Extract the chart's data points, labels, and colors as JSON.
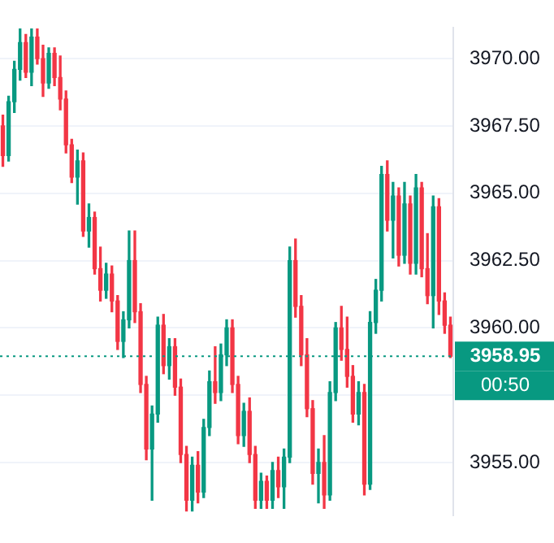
{
  "chart_data": {
    "type": "candlestick",
    "categories": [
      null,
      null,
      null,
      null,
      null,
      null,
      null,
      null,
      null,
      null,
      null,
      null,
      null,
      null,
      null,
      null,
      null,
      null,
      null,
      null,
      null,
      null,
      null,
      null,
      null,
      null,
      null,
      null,
      null,
      null,
      null,
      null,
      null,
      null,
      null,
      null,
      null,
      null,
      null,
      null,
      null,
      null,
      null,
      null,
      null,
      null,
      null,
      null,
      null,
      null,
      null,
      null,
      null,
      null,
      null,
      null,
      null,
      null,
      null,
      null,
      null,
      null,
      null,
      null,
      null,
      null,
      null,
      null,
      null,
      null,
      null,
      null,
      null,
      null,
      null,
      null,
      null,
      null,
      null
    ],
    "ohlc": [
      [
        3967.5,
        3967.9,
        3966.0,
        3966.4
      ],
      [
        3966.4,
        3968.6,
        3966.2,
        3968.4
      ],
      [
        3968.4,
        3969.9,
        3968.0,
        3969.6
      ],
      [
        3969.6,
        3971.1,
        3969.2,
        3970.6
      ],
      [
        3970.6,
        3970.9,
        3969.3,
        3969.5
      ],
      [
        3969.5,
        3971.1,
        3969.0,
        3970.8
      ],
      [
        3970.8,
        3971.1,
        3969.8,
        3970.0
      ],
      [
        3970.0,
        3970.5,
        3968.6,
        3969.1
      ],
      [
        3969.1,
        3970.4,
        3968.9,
        3970.2
      ],
      [
        3970.2,
        3970.4,
        3969.0,
        3969.3
      ],
      [
        3969.3,
        3970.1,
        3968.1,
        3968.5
      ],
      [
        3968.5,
        3968.8,
        3966.5,
        3966.8
      ],
      [
        3966.8,
        3967.0,
        3965.4,
        3965.6
      ],
      [
        3965.6,
        3966.6,
        3964.6,
        3966.2
      ],
      [
        3966.2,
        3966.5,
        3963.4,
        3963.6
      ],
      [
        3963.6,
        3964.6,
        3963.0,
        3964.1
      ],
      [
        3964.1,
        3964.3,
        3962.0,
        3962.2
      ],
      [
        3962.2,
        3963.0,
        3961.0,
        3961.4
      ],
      [
        3961.4,
        3962.4,
        3961.1,
        3962.0
      ],
      [
        3962.0,
        3962.3,
        3960.6,
        3961.0
      ],
      [
        3961.0,
        3961.2,
        3959.2,
        3959.5
      ],
      [
        3959.5,
        3960.6,
        3958.9,
        3960.3
      ],
      [
        3960.3,
        3963.6,
        3960.0,
        3962.5
      ],
      [
        3962.5,
        3963.6,
        3960.2,
        3960.6
      ],
      [
        3960.6,
        3960.9,
        3957.6,
        3957.9
      ],
      [
        3957.9,
        3958.2,
        3955.1,
        3955.5
      ],
      [
        3955.5,
        3957.1,
        3953.6,
        3956.8
      ],
      [
        3956.8,
        3960.4,
        3956.5,
        3960.1
      ],
      [
        3960.1,
        3960.5,
        3958.3,
        3958.6
      ],
      [
        3958.6,
        3959.6,
        3958.1,
        3959.3
      ],
      [
        3959.3,
        3959.6,
        3957.5,
        3957.8
      ],
      [
        3957.8,
        3958.1,
        3955.0,
        3955.3
      ],
      [
        3955.3,
        3955.6,
        3953.2,
        3953.6
      ],
      [
        3953.6,
        3955.2,
        3953.2,
        3954.9
      ],
      [
        3954.9,
        3955.4,
        3953.5,
        3953.9
      ],
      [
        3953.9,
        3956.6,
        3953.7,
        3956.3
      ],
      [
        3956.3,
        3958.4,
        3956.0,
        3958.0
      ],
      [
        3958.0,
        3959.3,
        3957.2,
        3957.6
      ],
      [
        3957.6,
        3959.4,
        3957.3,
        3959.0
      ],
      [
        3959.0,
        3960.3,
        3958.6,
        3960.0
      ],
      [
        3960.0,
        3960.3,
        3957.6,
        3957.9
      ],
      [
        3957.9,
        3958.2,
        3955.7,
        3956.0
      ],
      [
        3956.0,
        3957.2,
        3955.6,
        3956.9
      ],
      [
        3956.9,
        3957.4,
        3955.0,
        3955.3
      ],
      [
        3955.3,
        3955.6,
        3953.3,
        3953.6
      ],
      [
        3953.6,
        3954.6,
        3953.3,
        3954.3
      ],
      [
        3954.3,
        3954.5,
        3953.3,
        3953.6
      ],
      [
        3953.6,
        3955.0,
        3953.3,
        3954.7
      ],
      [
        3954.7,
        3955.2,
        3953.7,
        3954.1
      ],
      [
        3954.1,
        3955.5,
        3953.3,
        3955.2
      ],
      [
        3955.2,
        3963.0,
        3955.0,
        3962.5
      ],
      [
        3962.5,
        3963.3,
        3960.4,
        3960.8
      ],
      [
        3960.8,
        3961.2,
        3958.6,
        3959.0
      ],
      [
        3959.0,
        3959.6,
        3956.7,
        3957.0
      ],
      [
        3957.0,
        3957.3,
        3954.2,
        3954.6
      ],
      [
        3954.6,
        3955.5,
        3953.5,
        3955.0
      ],
      [
        3955.0,
        3956.0,
        3953.3,
        3953.8
      ],
      [
        3953.8,
        3958.0,
        3953.6,
        3957.6
      ],
      [
        3957.6,
        3960.2,
        3957.3,
        3960.0
      ],
      [
        3960.0,
        3960.8,
        3958.8,
        3959.2
      ],
      [
        3959.2,
        3960.4,
        3957.8,
        3958.2
      ],
      [
        3958.2,
        3958.6,
        3956.5,
        3956.8
      ],
      [
        3956.8,
        3958.0,
        3956.4,
        3957.6
      ],
      [
        3957.6,
        3957.9,
        3953.8,
        3954.2
      ],
      [
        3954.2,
        3960.6,
        3954.0,
        3960.2
      ],
      [
        3960.2,
        3961.8,
        3959.8,
        3961.4
      ],
      [
        3961.4,
        3966.0,
        3961.0,
        3965.7
      ],
      [
        3965.7,
        3966.2,
        3963.6,
        3964.0
      ],
      [
        3964.0,
        3965.4,
        3962.6,
        3964.9
      ],
      [
        3964.9,
        3965.2,
        3962.3,
        3962.7
      ],
      [
        3962.7,
        3965.4,
        3962.4,
        3964.6
      ],
      [
        3964.6,
        3964.9,
        3962.0,
        3962.4
      ],
      [
        3962.4,
        3965.7,
        3962.0,
        3965.2
      ],
      [
        3965.2,
        3965.4,
        3961.9,
        3962.2
      ],
      [
        3962.2,
        3963.5,
        3960.9,
        3961.2
      ],
      [
        3961.2,
        3964.9,
        3960.0,
        3964.5
      ],
      [
        3964.5,
        3964.8,
        3960.5,
        3961.0
      ],
      [
        3961.0,
        3961.3,
        3959.8,
        3960.1
      ],
      [
        3960.1,
        3960.4,
        3958.9,
        3958.95
      ]
    ],
    "colors": [
      "#f23645",
      "#089981",
      "#089981",
      "#089981",
      "#f23645",
      "#089981",
      "#f23645",
      "#f23645",
      "#089981",
      "#f23645",
      "#f23645",
      "#f23645",
      "#f23645",
      "#089981",
      "#f23645",
      "#089981",
      "#f23645",
      "#f23645",
      "#089981",
      "#f23645",
      "#f23645",
      "#089981",
      "#089981",
      "#f23645",
      "#f23645",
      "#f23645",
      "#089981",
      "#089981",
      "#f23645",
      "#089981",
      "#f23645",
      "#f23645",
      "#f23645",
      "#089981",
      "#f23645",
      "#089981",
      "#089981",
      "#f23645",
      "#089981",
      "#089981",
      "#f23645",
      "#f23645",
      "#089981",
      "#f23645",
      "#f23645",
      "#089981",
      "#f23645",
      "#089981",
      "#f23645",
      "#089981",
      "#089981",
      "#f23645",
      "#f23645",
      "#f23645",
      "#f23645",
      "#089981",
      "#f23645",
      "#089981",
      "#089981",
      "#f23645",
      "#f23645",
      "#f23645",
      "#089981",
      "#f23645",
      "#089981",
      "#089981",
      "#089981",
      "#f23645",
      "#089981",
      "#f23645",
      "#089981",
      "#f23645",
      "#089981",
      "#f23645",
      "#f23645",
      "#089981",
      "#f23645",
      "#f23645",
      "#f23645"
    ],
    "ylim": [
      3953.05,
      3971.14
    ],
    "yticks": [
      {
        "value": 3955,
        "label": "3955.00"
      },
      {
        "value": 3957.5,
        "label": null
      },
      {
        "value": 3960,
        "label": "3960.00"
      },
      {
        "value": 3962.5,
        "label": "3962.50"
      },
      {
        "value": 3965,
        "label": "3965.00"
      },
      {
        "value": 3967.5,
        "label": "3967.50"
      },
      {
        "value": 3970,
        "label": "3970.00"
      }
    ],
    "ref_lines": [
      {
        "axis": "y",
        "value": 3958.95,
        "label": "3958.95",
        "color": "#089981",
        "line_style": "dotted"
      }
    ],
    "annotations": [
      "00:50"
    ],
    "grid": "y",
    "tick_labels": "y"
  }
}
